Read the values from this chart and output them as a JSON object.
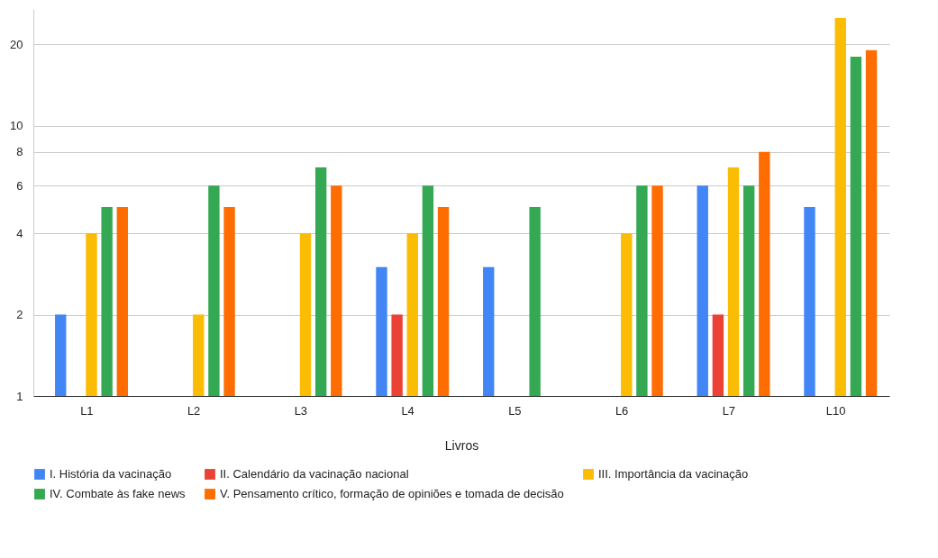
{
  "chart_data": {
    "type": "bar",
    "xlabel": "Livros",
    "categories": [
      "L1",
      "L2",
      "L3",
      "L4",
      "L5",
      "L6",
      "L7",
      "L10"
    ],
    "series": [
      {
        "name": "I. História da vacinação",
        "color": "#4285f4",
        "values": [
          2,
          1,
          1,
          3,
          3,
          1,
          6,
          5
        ]
      },
      {
        "name": "II. Calendário da vacinação nacional",
        "color": "#ea4335",
        "values": [
          null,
          null,
          null,
          2,
          null,
          1,
          2,
          1
        ]
      },
      {
        "name": "III. Importância da vacinação",
        "color": "#fbbc04",
        "values": [
          4,
          2,
          4,
          4,
          1,
          4,
          7,
          25
        ]
      },
      {
        "name": "IV. Combate às fake news",
        "color": "#34a853",
        "values": [
          5,
          6,
          7,
          6,
          5,
          6,
          6,
          18
        ]
      },
      {
        "name": "V. Pensamento crítico, formação de opiniões e tomada de decisão",
        "color": "#ff6d01",
        "values": [
          5,
          5,
          6,
          5,
          1,
          6,
          8,
          19
        ]
      }
    ],
    "log": true,
    "ylim": [
      1,
      27
    ],
    "yticks": [
      1,
      2,
      4,
      6,
      8,
      10,
      20
    ],
    "grid": "y",
    "legend": "bottom"
  }
}
